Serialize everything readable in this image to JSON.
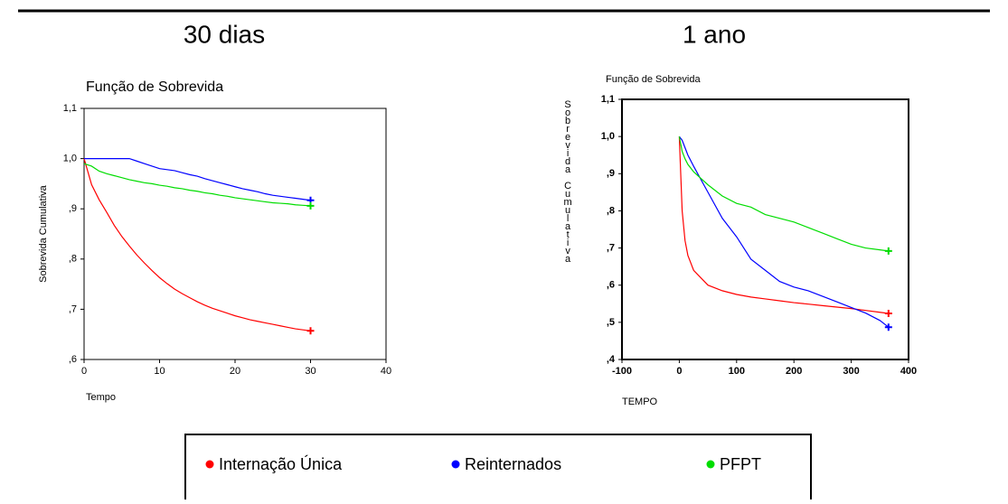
{
  "chart_data": [
    {
      "type": "line",
      "title": "30 dias",
      "subtitle": "Função de Sobrevida",
      "x_label": "Tempo",
      "y_label": "Sobrevida Cumulativa",
      "x": [
        0,
        1,
        2,
        3,
        4,
        5,
        6,
        7,
        8,
        9,
        10,
        11,
        12,
        13,
        14,
        15,
        16,
        17,
        18,
        19,
        20,
        21,
        22,
        23,
        24,
        25,
        26,
        27,
        28,
        29,
        30
      ],
      "series": [
        {
          "name": "Internação Única",
          "color": "#ff0000",
          "values": [
            1.0,
            0.948,
            0.918,
            0.893,
            0.867,
            0.845,
            0.826,
            0.808,
            0.792,
            0.777,
            0.763,
            0.751,
            0.74,
            0.731,
            0.723,
            0.715,
            0.708,
            0.702,
            0.697,
            0.692,
            0.687,
            0.683,
            0.679,
            0.676,
            0.673,
            0.67,
            0.667,
            0.664,
            0.661,
            0.659,
            0.657
          ]
        },
        {
          "name": "Reinternados",
          "color": "#0000ff",
          "values": [
            1.0,
            1.0,
            1.0,
            1.0,
            1.0,
            1.0,
            1.0,
            0.995,
            0.99,
            0.985,
            0.98,
            0.978,
            0.976,
            0.972,
            0.968,
            0.965,
            0.96,
            0.956,
            0.952,
            0.948,
            0.944,
            0.94,
            0.937,
            0.934,
            0.93,
            0.927,
            0.925,
            0.923,
            0.921,
            0.919,
            0.917
          ]
        },
        {
          "name": "PFPT",
          "color": "#00dd00",
          "values": [
            0.99,
            0.985,
            0.975,
            0.97,
            0.966,
            0.962,
            0.958,
            0.955,
            0.952,
            0.95,
            0.947,
            0.945,
            0.942,
            0.94,
            0.937,
            0.935,
            0.932,
            0.93,
            0.927,
            0.925,
            0.922,
            0.92,
            0.918,
            0.916,
            0.914,
            0.912,
            0.911,
            0.91,
            0.908,
            0.907,
            0.906
          ]
        }
      ],
      "xlim": [
        0,
        40
      ],
      "xticks": [
        0,
        10,
        20,
        30,
        40
      ],
      "ylim": [
        0.6,
        1.1
      ],
      "yticks": [
        {
          "value": 0.6,
          "label": ",6"
        },
        {
          "value": 0.7,
          "label": ",7"
        },
        {
          "value": 0.8,
          "label": ",8"
        },
        {
          "value": 0.9,
          "label": ",9"
        },
        {
          "value": 1.0,
          "label": "1,0"
        },
        {
          "value": 1.1,
          "label": "1,1"
        }
      ]
    },
    {
      "type": "line",
      "title": "1 ano",
      "subtitle": "Função de Sobrevida",
      "x_label": "TEMPO",
      "y_label": "Sobrevida Cumulativa",
      "x": [
        0,
        5,
        10,
        15,
        25,
        50,
        75,
        100,
        125,
        150,
        175,
        200,
        225,
        250,
        275,
        300,
        325,
        350,
        365
      ],
      "series": [
        {
          "name": "Internação Única",
          "color": "#ff0000",
          "values": [
            1.0,
            0.8,
            0.72,
            0.68,
            0.64,
            0.6,
            0.585,
            0.575,
            0.568,
            0.563,
            0.558,
            0.553,
            0.549,
            0.545,
            0.541,
            0.537,
            0.532,
            0.527,
            0.524
          ]
        },
        {
          "name": "Reinternados",
          "color": "#0000ff",
          "values": [
            1.0,
            0.99,
            0.97,
            0.95,
            0.92,
            0.85,
            0.78,
            0.73,
            0.67,
            0.64,
            0.61,
            0.595,
            0.585,
            0.57,
            0.555,
            0.54,
            0.525,
            0.505,
            0.487
          ]
        },
        {
          "name": "PFPT",
          "color": "#00dd00",
          "values": [
            1.0,
            0.96,
            0.94,
            0.925,
            0.905,
            0.87,
            0.84,
            0.82,
            0.81,
            0.79,
            0.78,
            0.77,
            0.755,
            0.74,
            0.725,
            0.71,
            0.7,
            0.695,
            0.692
          ]
        }
      ],
      "xlim": [
        -100,
        400
      ],
      "xticks": [
        -100,
        0,
        100,
        200,
        300,
        400
      ],
      "ylim": [
        0.4,
        1.1
      ],
      "yticks": [
        {
          "value": 0.4,
          "label": ",4"
        },
        {
          "value": 0.5,
          "label": ",5"
        },
        {
          "value": 0.6,
          "label": ",6"
        },
        {
          "value": 0.7,
          "label": ",7"
        },
        {
          "value": 0.8,
          "label": ",8"
        },
        {
          "value": 0.9,
          "label": ",9"
        },
        {
          "value": 1.0,
          "label": "1,0"
        },
        {
          "value": 1.1,
          "label": "1,1"
        }
      ]
    }
  ]
}
